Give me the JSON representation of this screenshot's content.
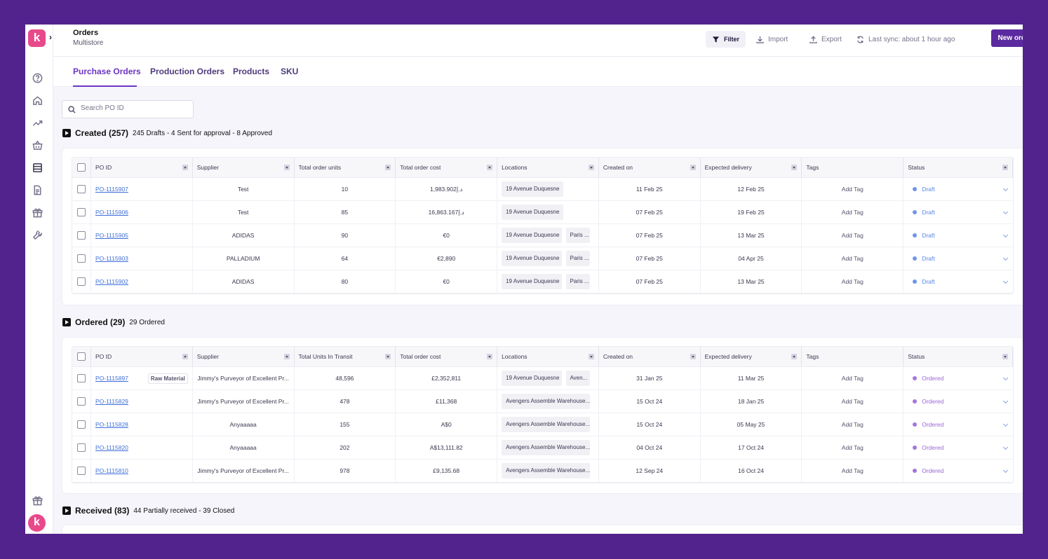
{
  "app": {
    "logo_letter": "k",
    "title": "Orders",
    "subtitle": "Multistore"
  },
  "header": {
    "filter_label": "Filter",
    "import_label": "Import",
    "export_label": "Export",
    "sync_label": "Last sync: about 1 hour ago",
    "new_order_label": "New order"
  },
  "rail": {
    "icons": [
      "help-icon",
      "home-icon",
      "trending-up-icon",
      "basket-icon",
      "orders-icon",
      "document-icon",
      "box-icon",
      "tools-icon"
    ],
    "gift_icon": "gift-icon",
    "avatar_letter": "k"
  },
  "tabs": [
    {
      "label": "Purchase Orders",
      "active": true
    },
    {
      "label": "Production Orders"
    },
    {
      "label": "Products"
    },
    {
      "label": "SKU"
    }
  ],
  "search": {
    "placeholder": "Search PO ID",
    "value": ""
  },
  "sections": {
    "created": {
      "title": "Created (257)",
      "summary": "245 Drafts - 4 Sent for approval - 8 Approved",
      "columns": [
        "PO ID",
        "Supplier",
        "Total order units",
        "Total order cost",
        "Locations",
        "Created on",
        "Expected delivery",
        "Tags",
        "Status"
      ],
      "rows": [
        {
          "po": "PO-1115907",
          "supplier": "Test",
          "units": "10",
          "cost": "1,983.902د.إ",
          "loc1": "19 Avenue Duquesne",
          "loc2": "",
          "created": "11 Feb 25",
          "delivery": "12 Feb 25",
          "tags": "Add Tag",
          "status": "Draft"
        },
        {
          "po": "PO-1115906",
          "supplier": "Test",
          "units": "85",
          "cost": "16,863.167د.إ",
          "loc1": "19 Avenue Duquesne",
          "loc2": "",
          "created": "07 Feb 25",
          "delivery": "19 Feb 25",
          "tags": "Add Tag",
          "status": "Draft"
        },
        {
          "po": "PO-1115905",
          "supplier": "ADIDAS",
          "units": "90",
          "cost": "€0",
          "loc1": "19 Avenue Duquesne",
          "loc2": "Paris ...",
          "created": "07 Feb 25",
          "delivery": "13 Mar 25",
          "tags": "Add Tag",
          "status": "Draft"
        },
        {
          "po": "PO-1115903",
          "supplier": "PALLADIUM",
          "units": "64",
          "cost": "€2,890",
          "loc1": "19 Avenue Duquesne",
          "loc2": "Paris ...",
          "created": "07 Feb 25",
          "delivery": "04 Apr 25",
          "tags": "Add Tag",
          "status": "Draft"
        },
        {
          "po": "PO-1115902",
          "supplier": "ADIDAS",
          "units": "80",
          "cost": "€0",
          "loc1": "19 Avenue Duquesne",
          "loc2": "Paris ...",
          "created": "07 Feb 25",
          "delivery": "13 Mar 25",
          "tags": "Add Tag",
          "status": "Draft"
        }
      ]
    },
    "ordered": {
      "title": "Ordered (29)",
      "summary": "29 Ordered",
      "columns": [
        "PO ID",
        "Supplier",
        "Total Units In Transit",
        "Total order cost",
        "Locations",
        "Created on",
        "Expected delivery",
        "Tags",
        "Status"
      ],
      "rows": [
        {
          "po": "PO-1115897",
          "tag_chip": "Raw Material",
          "supplier": "Jimmy's Purveyor of Excellent Pr...",
          "units": "48,596",
          "cost": "£2,352,811",
          "loc1": "19 Avenue Duquesne",
          "loc2": "Aven...",
          "created": "31 Jan 25",
          "delivery": "11 Mar 25",
          "tags": "Add Tag",
          "status": "Ordered"
        },
        {
          "po": "PO-1115829",
          "supplier": "Jimmy's Purveyor of Excellent Pr...",
          "units": "478",
          "cost": "£11,368",
          "loc1": "Avengers Assemble Warehouse...",
          "loc2": "",
          "created": "15 Oct 24",
          "delivery": "18 Jan 25",
          "tags": "Add Tag",
          "status": "Ordered"
        },
        {
          "po": "PO-1115828",
          "supplier": "Anyaaaaa",
          "units": "155",
          "cost": "A$0",
          "loc1": "Avengers Assemble Warehouse...",
          "loc2": "",
          "created": "15 Oct 24",
          "delivery": "05 May 25",
          "tags": "Add Tag",
          "status": "Ordered"
        },
        {
          "po": "PO-1115820",
          "supplier": "Anyaaaaa",
          "units": "202",
          "cost": "A$13,111.82",
          "loc1": "Avengers Assemble Warehouse...",
          "loc2": "",
          "created": "04 Oct 24",
          "delivery": "17 Oct 24",
          "tags": "Add Tag",
          "status": "Ordered"
        },
        {
          "po": "PO-1115810",
          "supplier": "Jimmy's Purveyor of Excellent Pr...",
          "units": "978",
          "cost": "£9,135.68",
          "loc1": "Avengers Assemble Warehouse...",
          "loc2": "",
          "created": "12 Sep 24",
          "delivery": "16 Oct 24",
          "tags": "Add Tag",
          "status": "Ordered"
        }
      ]
    },
    "received": {
      "title": "Received (83)",
      "summary": "44 Partially received - 39 Closed"
    }
  },
  "colors": {
    "accent": "#6c35c1",
    "background": "#52238c",
    "draft": "#5a86e0",
    "ordered": "#9a67d6",
    "logo": "#e8498a"
  }
}
